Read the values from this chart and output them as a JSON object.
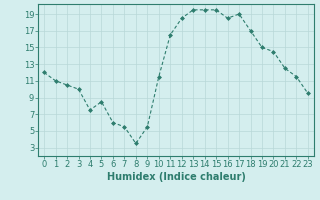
{
  "x": [
    0,
    1,
    2,
    3,
    4,
    5,
    6,
    7,
    8,
    9,
    10,
    11,
    12,
    13,
    14,
    15,
    16,
    17,
    18,
    19,
    20,
    21,
    22,
    23
  ],
  "y": [
    12,
    11,
    10.5,
    10,
    7.5,
    8.5,
    6,
    5.5,
    3.5,
    5.5,
    11.5,
    16.5,
    18.5,
    19.5,
    19.5,
    19.5,
    18.5,
    19,
    17,
    15,
    14.5,
    12.5,
    11.5,
    9.5
  ],
  "line_color": "#2E7D6E",
  "marker": "D",
  "marker_size": 2.0,
  "bg_color": "#D4EEEE",
  "grid_color": "#B8D8D8",
  "xlabel": "Humidex (Indice chaleur)",
  "xlim": [
    -0.5,
    23.5
  ],
  "ylim": [
    2.0,
    20.2
  ],
  "yticks": [
    3,
    5,
    7,
    9,
    11,
    13,
    15,
    17,
    19
  ],
  "xticks": [
    0,
    1,
    2,
    3,
    4,
    5,
    6,
    7,
    8,
    9,
    10,
    11,
    12,
    13,
    14,
    15,
    16,
    17,
    18,
    19,
    20,
    21,
    22,
    23
  ],
  "tick_color": "#2E7D6E",
  "label_color": "#2E7D6E",
  "font_size": 6,
  "xlabel_fontsize": 7
}
